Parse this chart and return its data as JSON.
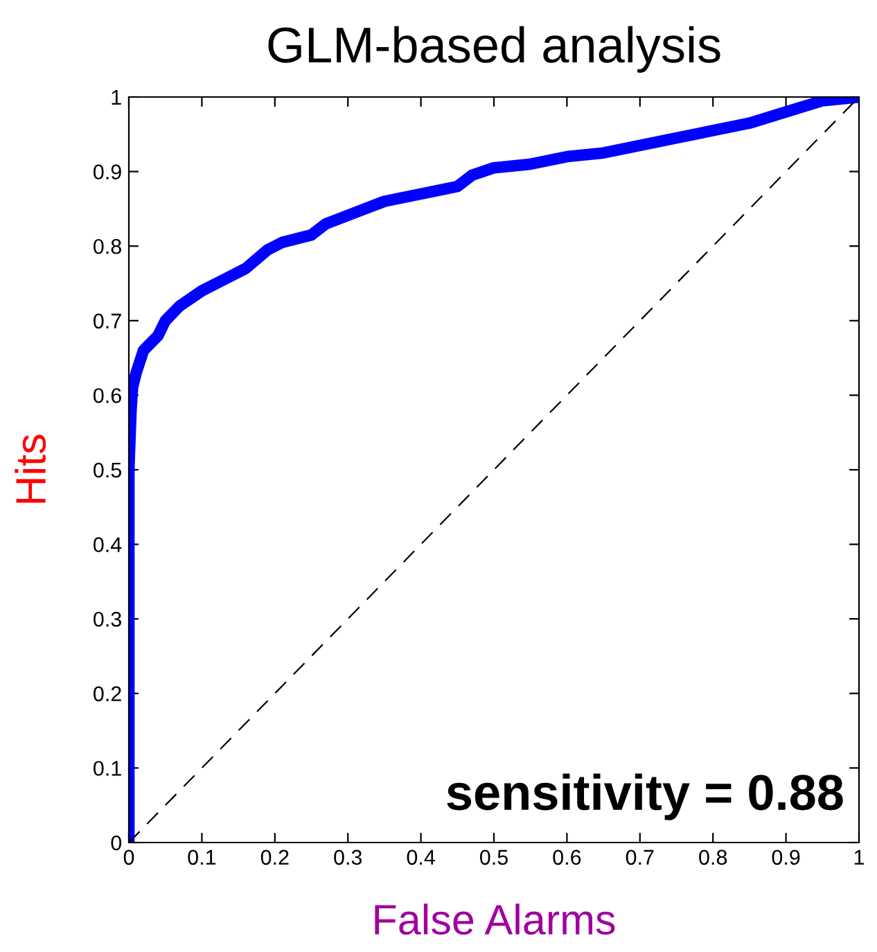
{
  "chart_data": {
    "type": "line",
    "title": "GLM-based analysis",
    "xlabel": "False Alarms",
    "ylabel": "Hits",
    "annotations": [
      "sensitivity = 0.88"
    ],
    "xlim": [
      0,
      1
    ],
    "ylim": [
      0,
      1
    ],
    "xticks": [
      0,
      0.1,
      0.2,
      0.3,
      0.4,
      0.5,
      0.6,
      0.7,
      0.8,
      0.9,
      1
    ],
    "yticks": [
      0,
      0.1,
      0.2,
      0.3,
      0.4,
      0.5,
      0.6,
      0.7,
      0.8,
      0.9,
      1
    ],
    "grid": false,
    "legend": false,
    "series": [
      {
        "color": "#0000ff",
        "line_style": "solid",
        "x": [
          0,
          0,
          0.003,
          0.005,
          0.01,
          0.02,
          0.04,
          0.05,
          0.07,
          0.1,
          0.13,
          0.16,
          0.19,
          0.21,
          0.25,
          0.27,
          0.31,
          0.35,
          0.4,
          0.45,
          0.47,
          0.5,
          0.55,
          0.6,
          0.65,
          0.7,
          0.75,
          0.8,
          0.85,
          0.9,
          0.95,
          1
        ],
        "values": [
          0,
          0.5,
          0.58,
          0.61,
          0.63,
          0.66,
          0.68,
          0.7,
          0.72,
          0.74,
          0.755,
          0.77,
          0.795,
          0.805,
          0.815,
          0.83,
          0.845,
          0.86,
          0.87,
          0.88,
          0.895,
          0.905,
          0.91,
          0.92,
          0.925,
          0.935,
          0.945,
          0.955,
          0.965,
          0.98,
          0.995,
          1
        ]
      },
      {
        "color": "#000000",
        "line_style": "dashed",
        "x": [
          0,
          1
        ],
        "values": [
          0,
          1
        ]
      }
    ]
  }
}
